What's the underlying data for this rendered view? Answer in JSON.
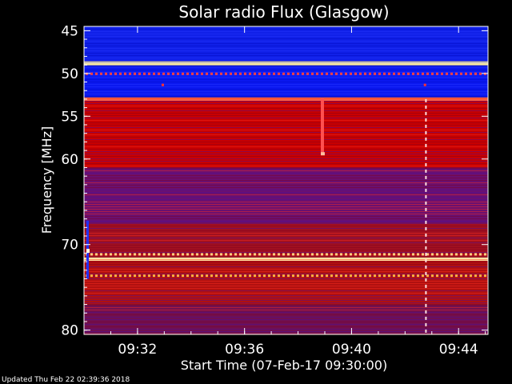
{
  "chart_data": {
    "type": "heatmap",
    "title": "Solar radio Flux (Glasgow)",
    "xlabel": "Start Time (07-Feb-17 09:30:00)",
    "ylabel": "Frequency [MHz]",
    "x_ticks": [
      "09:32",
      "09:36",
      "09:40",
      "09:44"
    ],
    "x_tick_values_min": [
      2,
      6,
      10,
      14
    ],
    "xlim_min": [
      0,
      15.1
    ],
    "y_ticks": [
      "45",
      "50",
      "55",
      "60",
      "70",
      "80"
    ],
    "y_tick_values_mhz": [
      45,
      50,
      55,
      60,
      70,
      80
    ],
    "ylim_mhz": [
      44.5,
      80.5
    ],
    "bands_mhz": [
      {
        "from": 44.5,
        "to": 48.6,
        "level": "low",
        "color": "#1020e8"
      },
      {
        "from": 48.6,
        "to": 49.1,
        "level": "saturated",
        "color": "#fff0a0"
      },
      {
        "from": 49.1,
        "to": 52.8,
        "level": "low",
        "color": "#0a18f0"
      },
      {
        "from": 52.8,
        "to": 53.2,
        "level": "high",
        "color": "#ff6040"
      },
      {
        "from": 53.2,
        "to": 61.0,
        "level": "high",
        "color": "#c80000"
      },
      {
        "from": 61.0,
        "to": 67.5,
        "level": "medium",
        "color": "#6a1070"
      },
      {
        "from": 67.5,
        "to": 71.5,
        "level": "high",
        "color": "#a01020"
      },
      {
        "from": 71.5,
        "to": 71.9,
        "level": "saturated",
        "color": "#ffe0a0"
      },
      {
        "from": 71.9,
        "to": 77.0,
        "level": "high",
        "color": "#b01010"
      },
      {
        "from": 77.0,
        "to": 80.5,
        "level": "medium",
        "color": "#701050"
      }
    ],
    "colors": {
      "low": "#0010ff",
      "medium": "#5a1090",
      "high": "#d00000",
      "saturated": "#ffffc0"
    }
  },
  "footer": {
    "updated": "Updated Thu Feb 22 02:39:36 2018"
  }
}
